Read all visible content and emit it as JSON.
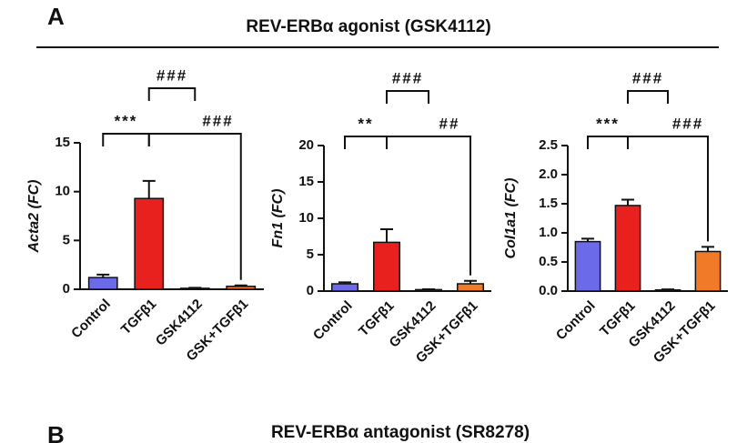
{
  "panel_a": {
    "letter": "A",
    "title": "REV-ERBα agonist (GSK4112)"
  },
  "panel_b": {
    "letter": "B",
    "title": "REV-ERBα antagonist (SR8278)"
  },
  "chart_data": [
    {
      "type": "bar",
      "y_label": "Acta2 (FC)",
      "categories": [
        "Control",
        "TGFβ1",
        "GSK4112",
        "GSK+TGFβ1"
      ],
      "values": [
        1.2,
        9.3,
        0.1,
        0.3
      ],
      "errors": [
        0.3,
        1.8,
        0.05,
        0.1
      ],
      "colors": [
        "#6b6bea",
        "#e8201e",
        "#7a3fa0",
        "#f07a28"
      ],
      "ylim": [
        0,
        15
      ],
      "yticks": [
        0,
        5,
        10,
        15
      ],
      "annotations": [
        "***",
        "###",
        "###"
      ]
    },
    {
      "type": "bar",
      "y_label": "Fn1 (FC)",
      "categories": [
        "Control",
        "TGFβ1",
        "GSK4112",
        "GSK+TGFβ1"
      ],
      "values": [
        1.0,
        6.7,
        0.2,
        1.0
      ],
      "errors": [
        0.2,
        1.8,
        0.05,
        0.4
      ],
      "colors": [
        "#6b6bea",
        "#e8201e",
        "#7a3fa0",
        "#f07a28"
      ],
      "ylim": [
        0,
        20
      ],
      "yticks": [
        0,
        5,
        10,
        15,
        20
      ],
      "annotations": [
        "**",
        "###",
        "##"
      ]
    },
    {
      "type": "bar",
      "y_label": "Col1a1 (FC)",
      "categories": [
        "Control",
        "TGFβ1",
        "GSK4112",
        "GSK+TGFβ1"
      ],
      "values": [
        0.85,
        1.47,
        0.02,
        0.68
      ],
      "errors": [
        0.05,
        0.1,
        0.01,
        0.08
      ],
      "colors": [
        "#6b6bea",
        "#e8201e",
        "#7a3fa0",
        "#f07a28"
      ],
      "ylim": [
        0,
        2.5
      ],
      "yticks": [
        {
          "value": 0,
          "label": "0.0"
        },
        0.5,
        {
          "value": 1,
          "label": "1.0"
        },
        1.5,
        {
          "value": 2,
          "label": "2.0"
        },
        2.5
      ],
      "annotations": [
        "***",
        "###",
        "###"
      ]
    }
  ]
}
